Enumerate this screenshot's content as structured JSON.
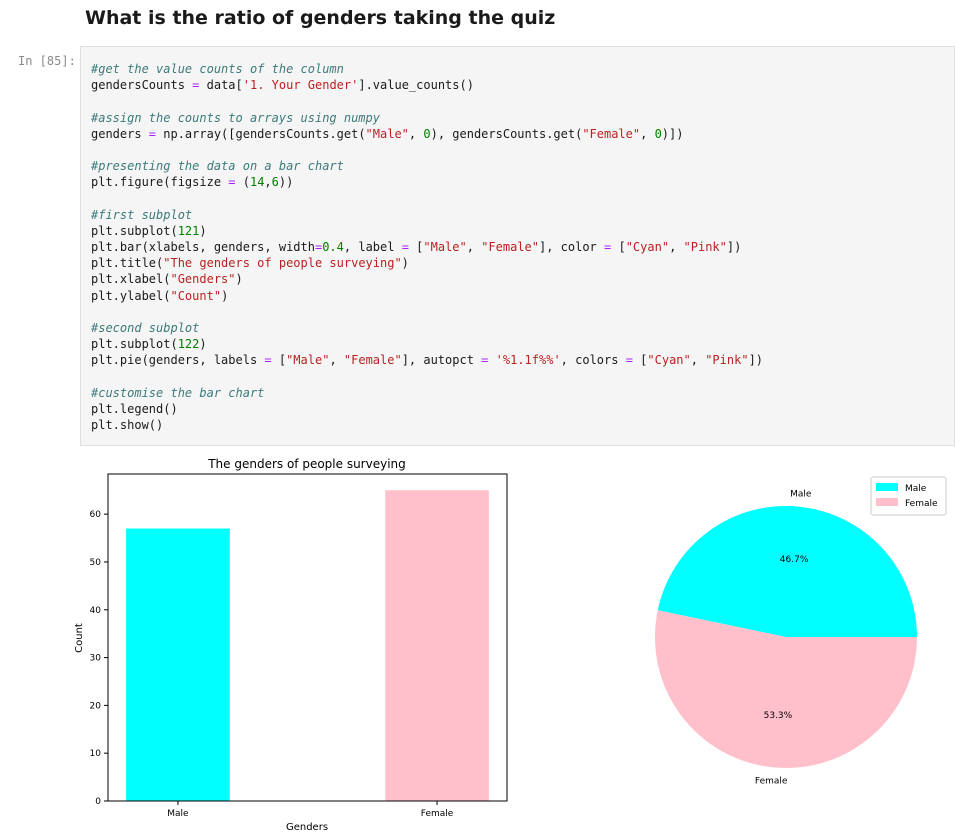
{
  "notebook": {
    "heading": "What is the ratio of genders taking the quiz",
    "cell_prompt": "In [85]:",
    "code_lines": [
      [
        {
          "t": "#get the value counts of the column",
          "k": "c"
        }
      ],
      [
        {
          "t": "gendersCounts ",
          "k": ""
        },
        {
          "t": "=",
          "k": "o"
        },
        {
          "t": " data[",
          "k": ""
        },
        {
          "t": "'1. Your Gender'",
          "k": "s"
        },
        {
          "t": "].value_counts()",
          "k": ""
        }
      ],
      [],
      [
        {
          "t": "#assign the counts to arrays using numpy",
          "k": "c"
        }
      ],
      [
        {
          "t": "genders ",
          "k": ""
        },
        {
          "t": "=",
          "k": "o"
        },
        {
          "t": " np.array([gendersCounts.get(",
          "k": ""
        },
        {
          "t": "\"Male\"",
          "k": "s"
        },
        {
          "t": ", ",
          "k": ""
        },
        {
          "t": "0",
          "k": "n"
        },
        {
          "t": "), gendersCounts.get(",
          "k": ""
        },
        {
          "t": "\"Female\"",
          "k": "s"
        },
        {
          "t": ", ",
          "k": ""
        },
        {
          "t": "0",
          "k": "n"
        },
        {
          "t": ")])",
          "k": ""
        }
      ],
      [],
      [
        {
          "t": "#presenting the data on a bar chart",
          "k": "c"
        }
      ],
      [
        {
          "t": "plt.figure(figsize ",
          "k": ""
        },
        {
          "t": "=",
          "k": "o"
        },
        {
          "t": " (",
          "k": ""
        },
        {
          "t": "14",
          "k": "n"
        },
        {
          "t": ",",
          "k": ""
        },
        {
          "t": "6",
          "k": "n"
        },
        {
          "t": "))",
          "k": ""
        }
      ],
      [],
      [
        {
          "t": "#first subplot",
          "k": "c"
        }
      ],
      [
        {
          "t": "plt.subplot(",
          "k": ""
        },
        {
          "t": "121",
          "k": "n"
        },
        {
          "t": ")",
          "k": ""
        }
      ],
      [
        {
          "t": "plt.bar(xlabels, genders, width",
          "k": ""
        },
        {
          "t": "=",
          "k": "o"
        },
        {
          "t": "0.4",
          "k": "n"
        },
        {
          "t": ", label ",
          "k": ""
        },
        {
          "t": "=",
          "k": "o"
        },
        {
          "t": " [",
          "k": ""
        },
        {
          "t": "\"Male\"",
          "k": "s"
        },
        {
          "t": ", ",
          "k": ""
        },
        {
          "t": "\"Female\"",
          "k": "s"
        },
        {
          "t": "], color ",
          "k": ""
        },
        {
          "t": "=",
          "k": "o"
        },
        {
          "t": " [",
          "k": ""
        },
        {
          "t": "\"Cyan\"",
          "k": "s"
        },
        {
          "t": ", ",
          "k": ""
        },
        {
          "t": "\"Pink\"",
          "k": "s"
        },
        {
          "t": "])",
          "k": ""
        }
      ],
      [
        {
          "t": "plt.title(",
          "k": ""
        },
        {
          "t": "\"The genders of people surveying\"",
          "k": "s"
        },
        {
          "t": ")",
          "k": ""
        }
      ],
      [
        {
          "t": "plt.xlabel(",
          "k": ""
        },
        {
          "t": "\"Genders\"",
          "k": "s"
        },
        {
          "t": ")",
          "k": ""
        }
      ],
      [
        {
          "t": "plt.ylabel(",
          "k": ""
        },
        {
          "t": "\"Count\"",
          "k": "s"
        },
        {
          "t": ")",
          "k": ""
        }
      ],
      [],
      [
        {
          "t": "#second subplot",
          "k": "c"
        }
      ],
      [
        {
          "t": "plt.subplot(",
          "k": ""
        },
        {
          "t": "122",
          "k": "n"
        },
        {
          "t": ")",
          "k": ""
        }
      ],
      [
        {
          "t": "plt.pie(genders, labels ",
          "k": ""
        },
        {
          "t": "=",
          "k": "o"
        },
        {
          "t": " [",
          "k": ""
        },
        {
          "t": "\"Male\"",
          "k": "s"
        },
        {
          "t": ", ",
          "k": ""
        },
        {
          "t": "\"Female\"",
          "k": "s"
        },
        {
          "t": "], autopct ",
          "k": ""
        },
        {
          "t": "=",
          "k": "o"
        },
        {
          "t": " ",
          "k": ""
        },
        {
          "t": "'%1.1f%%'",
          "k": "s"
        },
        {
          "t": ", colors ",
          "k": ""
        },
        {
          "t": "=",
          "k": "o"
        },
        {
          "t": " [",
          "k": ""
        },
        {
          "t": "\"Cyan\"",
          "k": "s"
        },
        {
          "t": ", ",
          "k": ""
        },
        {
          "t": "\"Pink\"",
          "k": "s"
        },
        {
          "t": "])",
          "k": ""
        }
      ],
      [],
      [
        {
          "t": "#customise the bar chart",
          "k": "c"
        }
      ],
      [
        {
          "t": "plt.legend()",
          "k": ""
        }
      ],
      [
        {
          "t": "plt.show()",
          "k": ""
        }
      ]
    ]
  },
  "chart_data": [
    {
      "type": "bar",
      "title": "The genders of people surveying",
      "xlabel": "Genders",
      "ylabel": "Count",
      "categories": [
        "Male",
        "Female"
      ],
      "values": [
        57,
        65
      ],
      "colors": [
        "#00ffff",
        "#ffc0cb"
      ],
      "ylim": [
        0,
        68.4
      ],
      "yticks": [
        0,
        10,
        20,
        30,
        40,
        50,
        60
      ],
      "grid": false
    },
    {
      "type": "pie",
      "labels": [
        "Male",
        "Female"
      ],
      "values": [
        57,
        65
      ],
      "pct_labels": [
        "46.7%",
        "53.3%"
      ],
      "colors": [
        "#00ffff",
        "#ffc0cb"
      ],
      "legend": {
        "placement": "top-right",
        "entries": [
          "Male",
          "Female"
        ]
      }
    }
  ]
}
